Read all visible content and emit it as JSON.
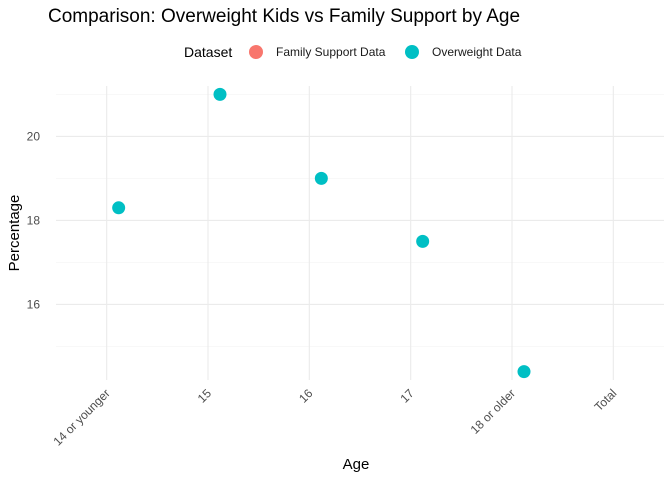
{
  "chart_data": {
    "type": "scatter",
    "title": "Comparison: Overweight Kids vs Family Support by Age",
    "xlabel": "Age",
    "ylabel": "Percentage",
    "categories": [
      "14 or younger",
      "15",
      "16",
      "17",
      "18 or older",
      "Total"
    ],
    "ylim": [
      14.2,
      21.2
    ],
    "yticks": [
      16,
      18,
      20
    ],
    "grid": true,
    "legend": {
      "title": "Dataset",
      "position": "top",
      "entries": [
        {
          "name": "Family Support Data",
          "color": "#F8766D"
        },
        {
          "name": "Overweight Data",
          "color": "#00BFC4"
        }
      ]
    },
    "series": [
      {
        "name": "Family Support Data",
        "color": "#F8766D",
        "points": []
      },
      {
        "name": "Overweight Data",
        "color": "#00BFC4",
        "points": [
          {
            "x": "14 or younger",
            "y": 18.3
          },
          {
            "x": "15",
            "y": 21.0
          },
          {
            "x": "16",
            "y": 19.0
          },
          {
            "x": "17",
            "y": 17.5
          },
          {
            "x": "18 or older",
            "y": 14.4
          }
        ]
      }
    ]
  }
}
